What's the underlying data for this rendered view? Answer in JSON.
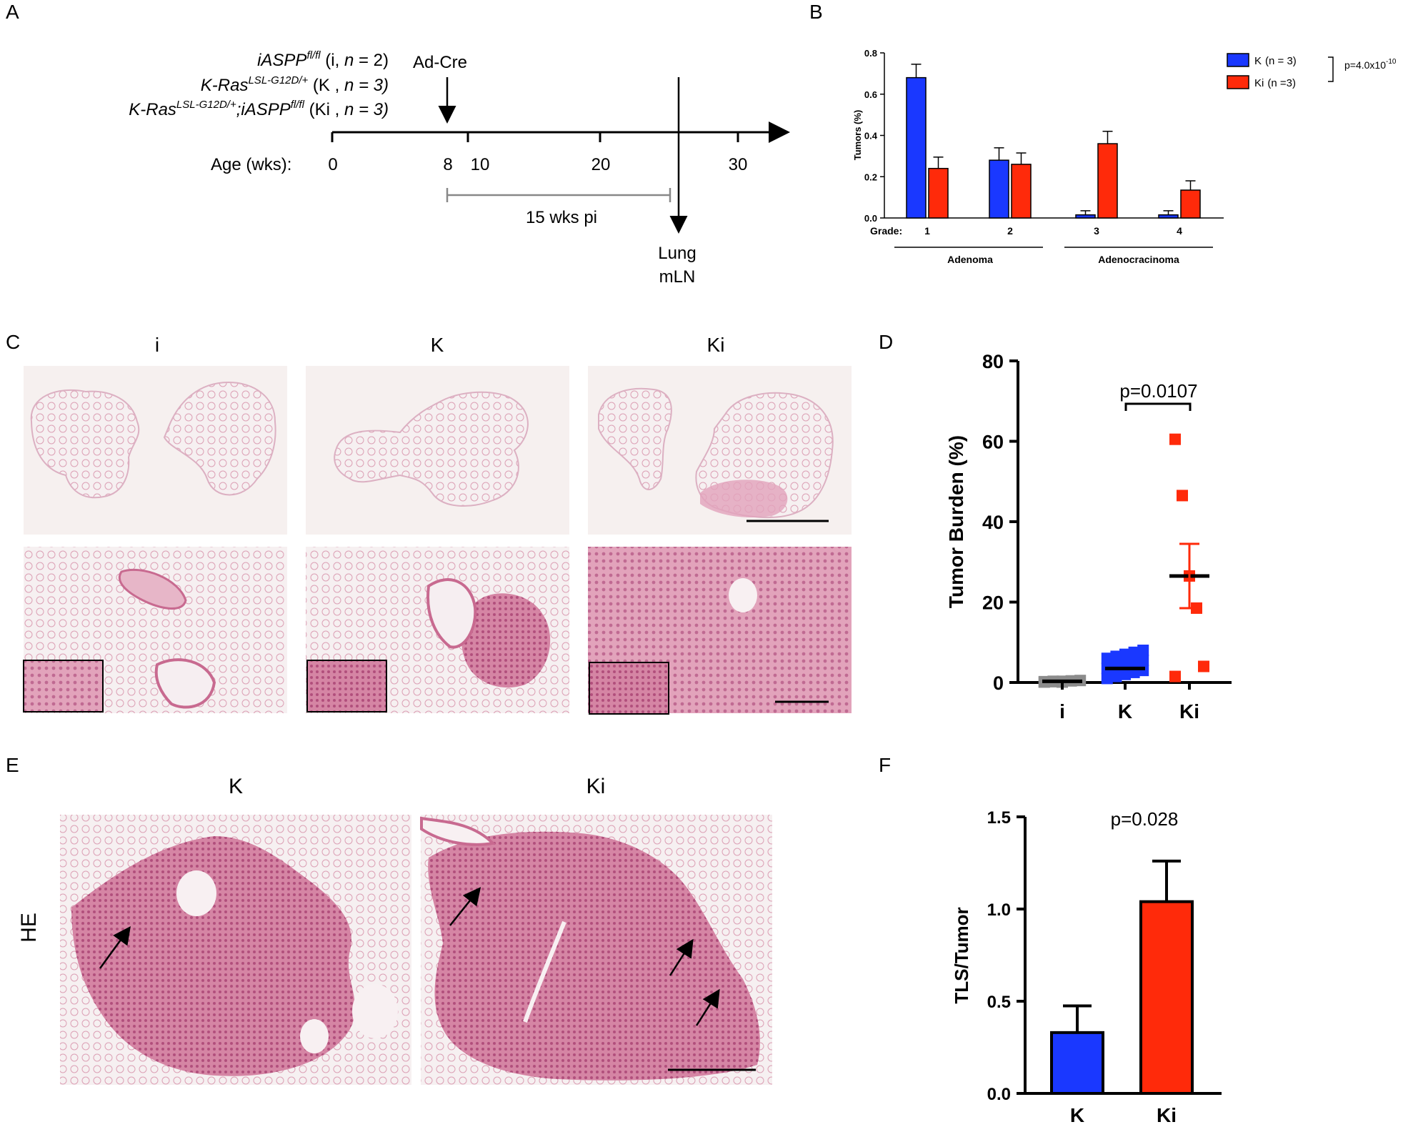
{
  "panel_letters": {
    "a": "A",
    "b": "B",
    "c": "C",
    "d": "D",
    "e": "E",
    "f": "F"
  },
  "panel_a": {
    "genotypes": [
      {
        "gene": "iASPP",
        "sup": "fl/fl",
        "paren_open": " (i, ",
        "n_label": "n",
        "n_value": " = 2)"
      },
      {
        "gene": "K-Ras",
        "sup": "LSL-G12D/+",
        "paren_open": " (K , ",
        "n_label": "n",
        "n_value": " = 3)"
      },
      {
        "gene": "K-Ras",
        "sup": "LSL-G12D/+",
        "gene2": ";iASPP",
        "sup2": "fl/fl",
        "paren_open": " (Ki , ",
        "n_label": "n",
        "n_value": " = 3)"
      }
    ],
    "ad_cre_label": "Ad-Cre",
    "age_label": "Age (wks):",
    "ticks": [
      "0",
      "8",
      "10",
      "20",
      "30"
    ],
    "interval_label": "15 wks pi",
    "endpoint_label_1": "Lung",
    "endpoint_label_2": "mLN"
  },
  "panel_c": {
    "columns": [
      "i",
      "K",
      "Ki"
    ],
    "colors": {
      "tissue": "#e9b7c8",
      "tissue_dark": "#c6577e",
      "bg": "#f7f0ef"
    }
  },
  "panel_e": {
    "columns": [
      "K",
      "Ki"
    ],
    "row_label": "HE"
  },
  "chart_data": [
    {
      "panel": "B",
      "type": "bar",
      "categories": [
        "1",
        "2",
        "3",
        "4"
      ],
      "category_prefix": "Grade:",
      "groups": [
        {
          "label": "Adenoma",
          "categories": [
            "1",
            "2"
          ]
        },
        {
          "label": "Adenocracinoma",
          "categories": [
            "3",
            "4"
          ]
        }
      ],
      "series": [
        {
          "name": "K",
          "n_text": "(n = 3)",
          "color": "#1a38ff",
          "values": [
            0.68,
            0.28,
            0.015,
            0.015
          ],
          "errors": [
            0.065,
            0.06,
            0.02,
            0.02
          ]
        },
        {
          "name": "Ki",
          "n_text": "(n =3)",
          "color": "#ff2a0a",
          "values": [
            0.24,
            0.26,
            0.36,
            0.135
          ],
          "errors": [
            0.055,
            0.055,
            0.06,
            0.045
          ]
        }
      ],
      "ylabel": "Tumors (%)",
      "ylim": [
        0,
        0.8
      ],
      "yticks": [
        "0.0",
        "0.2",
        "0.4",
        "0.6",
        "0.8"
      ],
      "legend_position": "top-right",
      "annotation": "p=4.0x10",
      "annotation_sup": "-10"
    },
    {
      "panel": "D",
      "type": "scatter",
      "categories": [
        "i",
        "K",
        "Ki"
      ],
      "ylabel": "Tumor Burden (%)",
      "ylim": [
        0,
        80
      ],
      "yticks": [
        "0",
        "20",
        "40",
        "60",
        "80"
      ],
      "series": [
        {
          "name": "i",
          "color": "#8c8c8c",
          "values": [
            0.1,
            0.2,
            0.3,
            0.4,
            0.5,
            0.2,
            0.3,
            0.1
          ],
          "mean": 0.3,
          "sem": 0.1
        },
        {
          "name": "K",
          "color": "#1a38ff",
          "values": [
            1.0,
            1.5,
            2.0,
            2.5,
            3.0,
            3.5,
            4.0,
            4.5,
            5.0,
            5.5,
            6.0,
            6.5,
            7.0,
            7.5,
            8.0
          ],
          "mean": 3.5,
          "sem": 1.0
        },
        {
          "name": "Ki",
          "color": "#ff2a0a",
          "values": [
            60.5,
            46.5,
            26.5,
            18.5,
            4.0,
            1.5
          ],
          "mean": 26.5,
          "sem": 8.0
        }
      ],
      "annotation": "p=0.0107",
      "annotation_compare": [
        "K",
        "Ki"
      ]
    },
    {
      "panel": "F",
      "type": "bar",
      "categories": [
        "K",
        "Ki"
      ],
      "values": [
        0.33,
        1.04
      ],
      "errors": [
        0.145,
        0.22
      ],
      "colors": [
        "#1a38ff",
        "#ff2a0a"
      ],
      "ylabel": "TLS/Tumor",
      "ylim": [
        0,
        1.5
      ],
      "yticks": [
        "0.0",
        "0.5",
        "1.0",
        "1.5"
      ],
      "annotation": "p=0.028"
    }
  ]
}
